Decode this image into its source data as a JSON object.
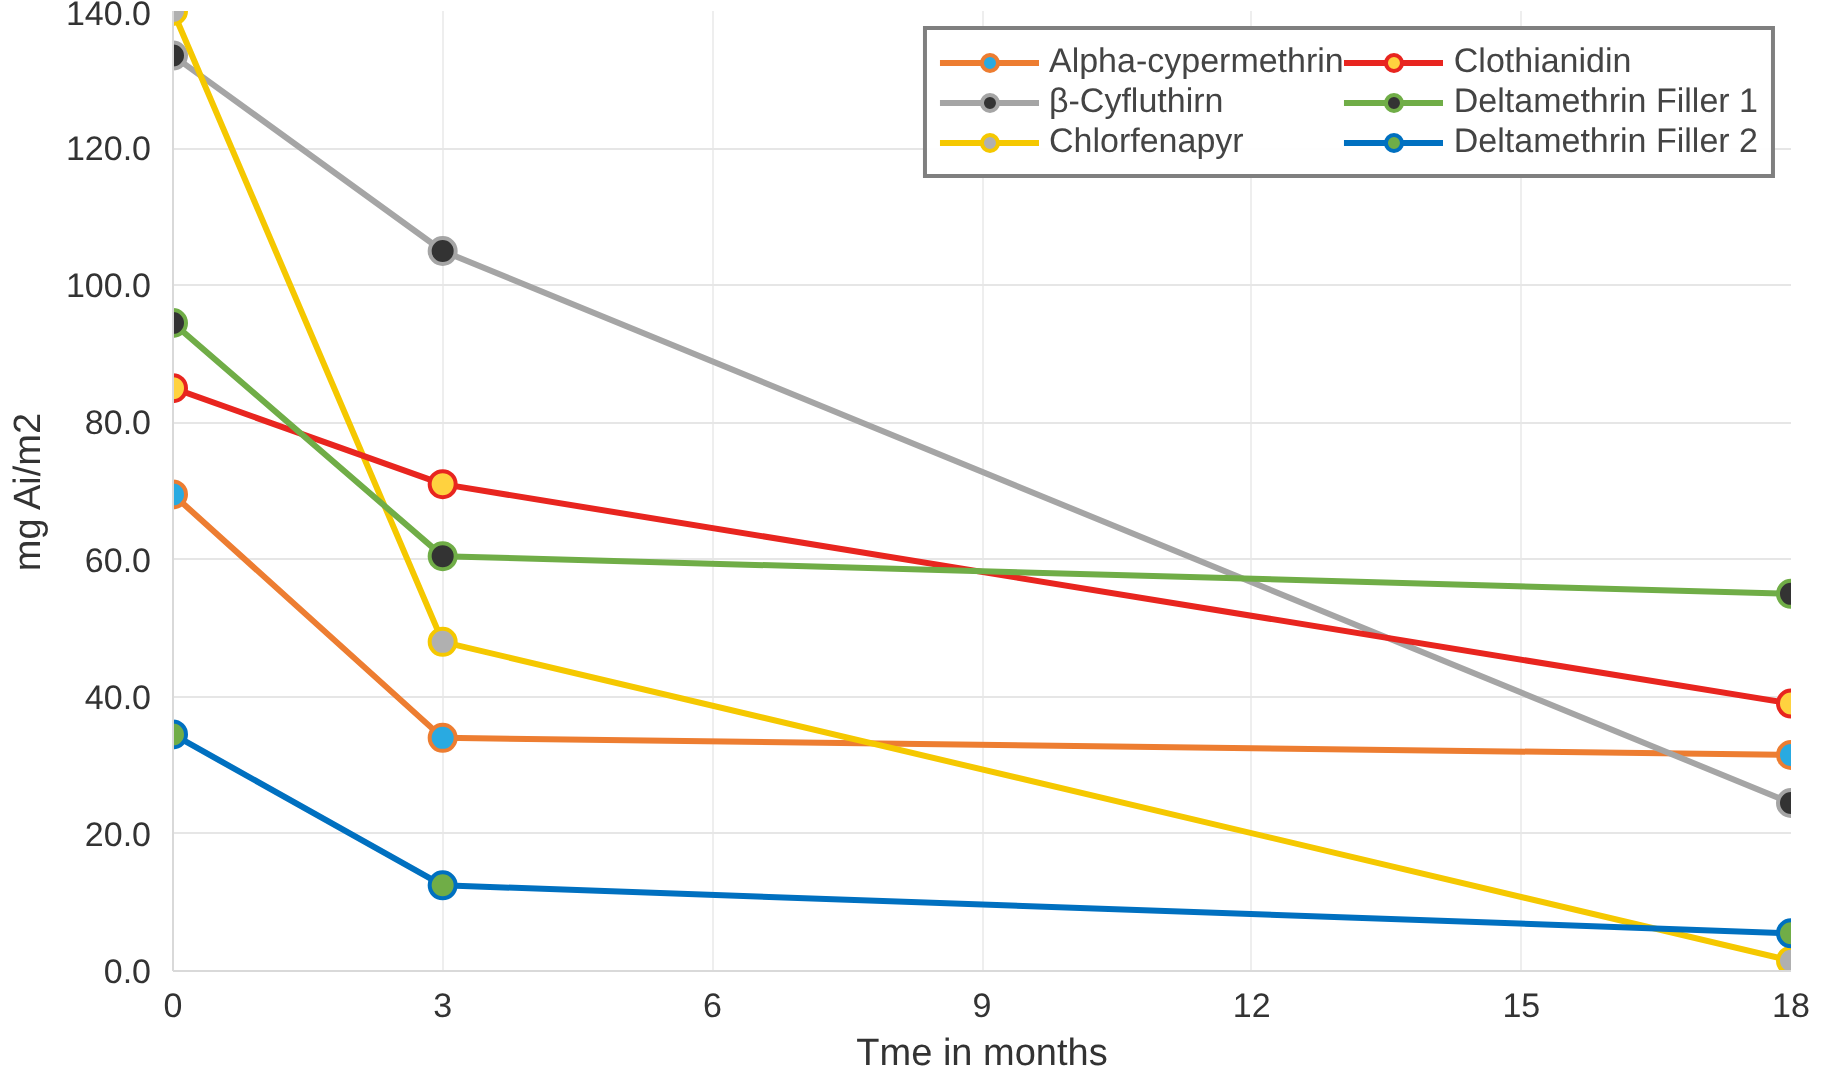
{
  "chart_data": {
    "type": "line",
    "xlabel": "Tme in months",
    "ylabel": "mg Ai/m2",
    "x": [
      0,
      3,
      18
    ],
    "xlim": [
      0,
      18
    ],
    "xticks": [
      0,
      3,
      6,
      9,
      12,
      15,
      18
    ],
    "ylim": [
      0,
      140
    ],
    "yticks": [
      {
        "value": 0,
        "label": "0.0"
      },
      {
        "value": 20,
        "label": "20.0"
      },
      {
        "value": 40,
        "label": "40.0"
      },
      {
        "value": 60,
        "label": "60.0"
      },
      {
        "value": 80,
        "label": "80.0"
      },
      {
        "value": 100,
        "label": "100.0"
      },
      {
        "value": 120,
        "label": "120.0"
      },
      {
        "value": 140,
        "label": "140.0"
      }
    ],
    "grid": true,
    "legend": "top right",
    "marker": "circle",
    "line_style": "solid",
    "series": [
      {
        "name": "Alpha-cypermethrin",
        "color": "#ed7d31",
        "colors": [
          "#29aae1",
          "#29aae1",
          "#29aae1"
        ],
        "values": [
          69.5,
          34,
          31.5
        ]
      },
      {
        "name": "β-Cyfluthirn",
        "color": "#a5a5a5",
        "colors": [
          "#333333",
          "#333333",
          "#333333"
        ],
        "values": [
          133.5,
          105,
          24.5
        ]
      },
      {
        "name": "Chlorfenapyr",
        "color": "#f5c800",
        "colors": [
          "#b0b0b0",
          "#b0b0b0",
          "#b0b0b0"
        ],
        "values": [
          140,
          48,
          1.5
        ]
      },
      {
        "name": "Clothianidin",
        "color": "#e8251f",
        "colors": [
          "#ffd23f",
          "#ffd23f",
          "#ffd23f"
        ],
        "values": [
          85,
          71,
          39
        ]
      },
      {
        "name": "Deltamethrin Filler 1",
        "color": "#70ad47",
        "colors": [
          "#333333",
          "#333333",
          "#333333"
        ],
        "values": [
          94.5,
          60.5,
          55
        ]
      },
      {
        "name": "Deltamethrin Filler 2",
        "color": "#0070c0",
        "colors": [
          "#70ad47",
          "#70ad47",
          "#70ad47"
        ],
        "values": [
          34.5,
          12.5,
          5.5
        ]
      }
    ]
  }
}
